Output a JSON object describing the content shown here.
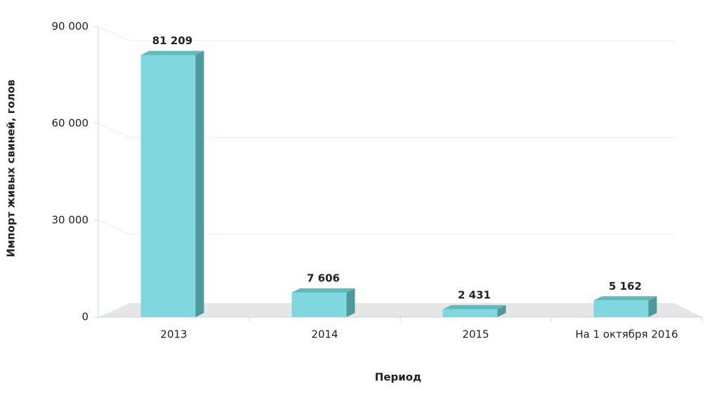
{
  "chart_data": {
    "type": "bar3d",
    "x_label": "Период",
    "y_label": "Импорт живых свиней, голов",
    "categories": [
      "2013",
      "2014",
      "2015",
      "На 1 октября 2016"
    ],
    "values": [
      81209,
      7606,
      2431,
      5162
    ],
    "value_labels": [
      "81 209",
      "7 606",
      "2 431",
      "5 162"
    ],
    "color": "#80d8de",
    "ylim": [
      0,
      90000
    ],
    "yticks": [
      0,
      {
        "value": 30000,
        "label": "30 000"
      },
      {
        "value": 60000,
        "label": "60 000"
      },
      {
        "value": 90000,
        "label": "90 000"
      }
    ],
    "grid": true
  }
}
